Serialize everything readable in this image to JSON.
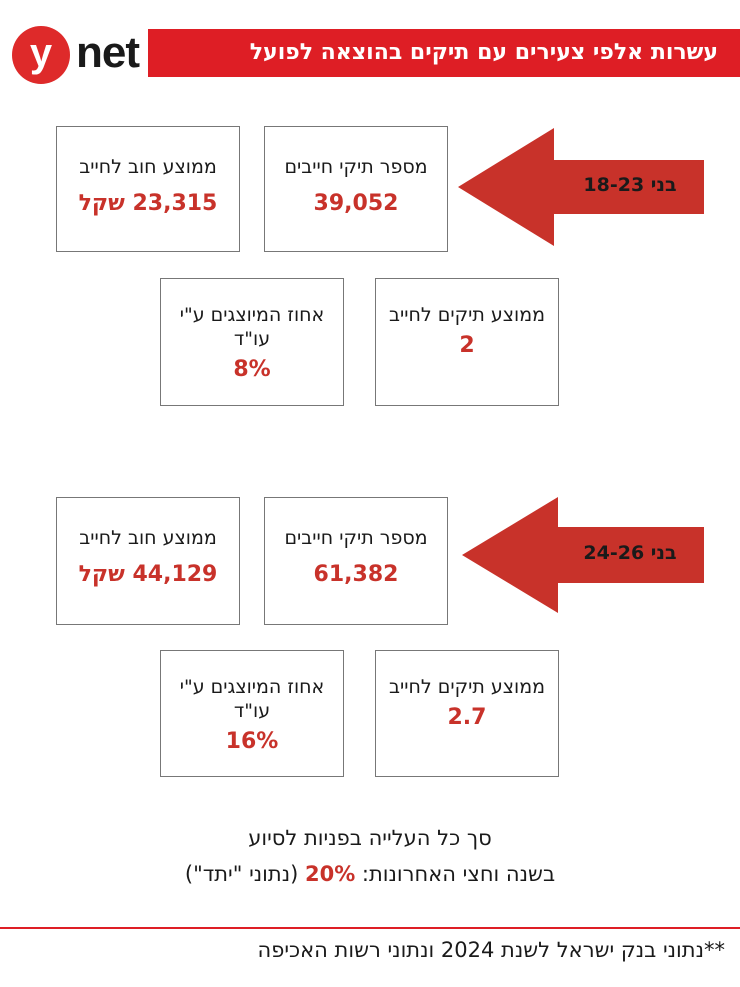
{
  "logo": {
    "letter": "y",
    "word": "net"
  },
  "title": "עשרות אלפי צעירים עם תיקים בהוצאה לפועל",
  "colors": {
    "accent": "#de1e25",
    "value": "#c8322a"
  },
  "groups": [
    {
      "arrow_label": "בני 18-23",
      "boxes": {
        "files": {
          "label": "מספר תיקי חייבים",
          "value": "39,052"
        },
        "debt": {
          "label": "ממוצע חוב לחייב",
          "value": "23,315 שקל"
        },
        "avg_files": {
          "label": "ממוצע תיקים לחייב",
          "value": "2"
        },
        "represented": {
          "label": "אחוז המיוצגים ע\"י עו\"ד",
          "value": "8%"
        }
      }
    },
    {
      "arrow_label": "בני 24-26",
      "boxes": {
        "files": {
          "label": "מספר תיקי חייבים",
          "value": "61,382"
        },
        "debt": {
          "label": "ממוצע חוב לחייב",
          "value": "44,129 שקל"
        },
        "avg_files": {
          "label": "ממוצע תיקים לחייב",
          "value": "2.7"
        },
        "represented": {
          "label": "אחוז המיוצגים ע\"י עו\"ד",
          "value": "16%"
        }
      }
    }
  ],
  "summary": {
    "line1": "סך כל העלייה בפניות לסיוע",
    "line2_before": "בשנה וחצי האחרונות: ",
    "line2_pct": "20%",
    "line2_after": " (נתוני \"יתד\")"
  },
  "footnote": "**נתוני בנק ישראל לשנת 2024 ונתוני רשות האכיפה"
}
